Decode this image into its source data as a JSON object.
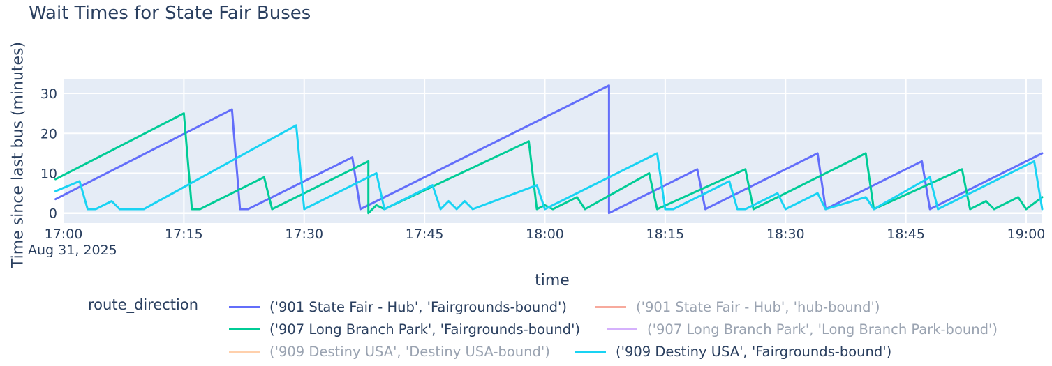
{
  "chart_data": {
    "type": "line",
    "title": "Wait Times for State Fair Buses",
    "xlabel": "time",
    "ylabel": "Time since last bus (minutes)",
    "x_date_label": "Aug 31, 2025",
    "x_ticks": [
      "17:00",
      "17:15",
      "17:30",
      "17:45",
      "18:00",
      "18:15",
      "18:30",
      "18:45",
      "19:00"
    ],
    "x_tick_minutes": [
      0,
      15,
      30,
      45,
      60,
      75,
      90,
      105,
      120
    ],
    "y_ticks": [
      0,
      10,
      20,
      30
    ],
    "xlim": [
      "17:00",
      "19:02"
    ],
    "ylim": [
      -2.5,
      33.5
    ],
    "grid": true,
    "plot_background": "#e5ecf6",
    "legend": {
      "title": "route_direction",
      "placement": "bottom"
    },
    "series": [
      {
        "name": "('901 State Fair - Hub', 'Fairgrounds-bound')",
        "color": "#636efa",
        "visible": true,
        "points": [
          [
            "16:59",
            3.5
          ],
          [
            "17:21",
            26
          ],
          [
            "17:22",
            1
          ],
          [
            "17:23",
            1
          ],
          [
            "17:36",
            14
          ],
          [
            "17:37",
            1
          ],
          [
            "18:08",
            32
          ],
          [
            "18:08",
            0
          ],
          [
            "18:19",
            11
          ],
          [
            "18:20",
            1
          ],
          [
            "18:34",
            15
          ],
          [
            "18:35",
            1
          ],
          [
            "18:47",
            13
          ],
          [
            "18:48",
            1
          ],
          [
            "19:02",
            15
          ]
        ]
      },
      {
        "name": "('901 State Fair - Hub', 'hub-bound')",
        "color": "#ef553b",
        "visible": false,
        "points": []
      },
      {
        "name": "('907 Long Branch Park', 'Fairgrounds-bound')",
        "color": "#00cc96",
        "visible": true,
        "points": [
          [
            "16:59",
            8.5
          ],
          [
            "17:15",
            25
          ],
          [
            "17:16",
            1
          ],
          [
            "17:17",
            1
          ],
          [
            "17:25",
            9
          ],
          [
            "17:26",
            1
          ],
          [
            "17:38",
            13
          ],
          [
            "17:38",
            0
          ],
          [
            "17:39",
            2
          ],
          [
            "17:40",
            1
          ],
          [
            "17:58",
            18
          ],
          [
            "17:59",
            1
          ],
          [
            "18:00",
            2
          ],
          [
            "18:01",
            1
          ],
          [
            "18:04",
            4
          ],
          [
            "18:05",
            1
          ],
          [
            "18:13",
            10
          ],
          [
            "18:14",
            1
          ],
          [
            "18:25",
            11
          ],
          [
            "18:26",
            1
          ],
          [
            "18:40",
            15
          ],
          [
            "18:41",
            1
          ],
          [
            "18:52",
            11
          ],
          [
            "18:53",
            1
          ],
          [
            "18:55",
            3
          ],
          [
            "18:56",
            1
          ],
          [
            "18:59",
            4
          ],
          [
            "19:00",
            1
          ],
          [
            "19:02",
            4
          ]
        ]
      },
      {
        "name": "('907 Long Branch Park', 'Long Branch Park-bound')",
        "color": "#ab63fa",
        "visible": false,
        "points": []
      },
      {
        "name": "('909 Destiny USA', 'Destiny USA-bound')",
        "color": "#ffa15a",
        "visible": false,
        "points": []
      },
      {
        "name": "('909 Destiny USA', 'Fairgrounds-bound')",
        "color": "#19d3f3",
        "visible": true,
        "points": [
          [
            "16:59",
            5.5
          ],
          [
            "17:02",
            8
          ],
          [
            "17:03",
            1
          ],
          [
            "17:04",
            1
          ],
          [
            "17:06",
            3
          ],
          [
            "17:07",
            1
          ],
          [
            "17:09",
            1
          ],
          [
            "17:10",
            1
          ],
          [
            "17:29",
            22
          ],
          [
            "17:30",
            1
          ],
          [
            "17:39",
            10
          ],
          [
            "17:40",
            1
          ],
          [
            "17:46",
            7
          ],
          [
            "17:47",
            1
          ],
          [
            "17:48",
            3
          ],
          [
            "17:49",
            1
          ],
          [
            "17:50",
            3
          ],
          [
            "17:51",
            1
          ],
          [
            "17:59",
            7
          ],
          [
            "18:00",
            1
          ],
          [
            "18:14",
            15
          ],
          [
            "18:15",
            1
          ],
          [
            "18:16",
            1
          ],
          [
            "18:23",
            8
          ],
          [
            "18:24",
            1
          ],
          [
            "18:25",
            1
          ],
          [
            "18:29",
            5
          ],
          [
            "18:30",
            1
          ],
          [
            "18:34",
            5
          ],
          [
            "18:35",
            1
          ],
          [
            "18:40",
            4
          ],
          [
            "18:41",
            1
          ],
          [
            "18:48",
            9
          ],
          [
            "18:49",
            1
          ],
          [
            "19:01",
            13
          ],
          [
            "19:02",
            1
          ]
        ]
      }
    ]
  }
}
